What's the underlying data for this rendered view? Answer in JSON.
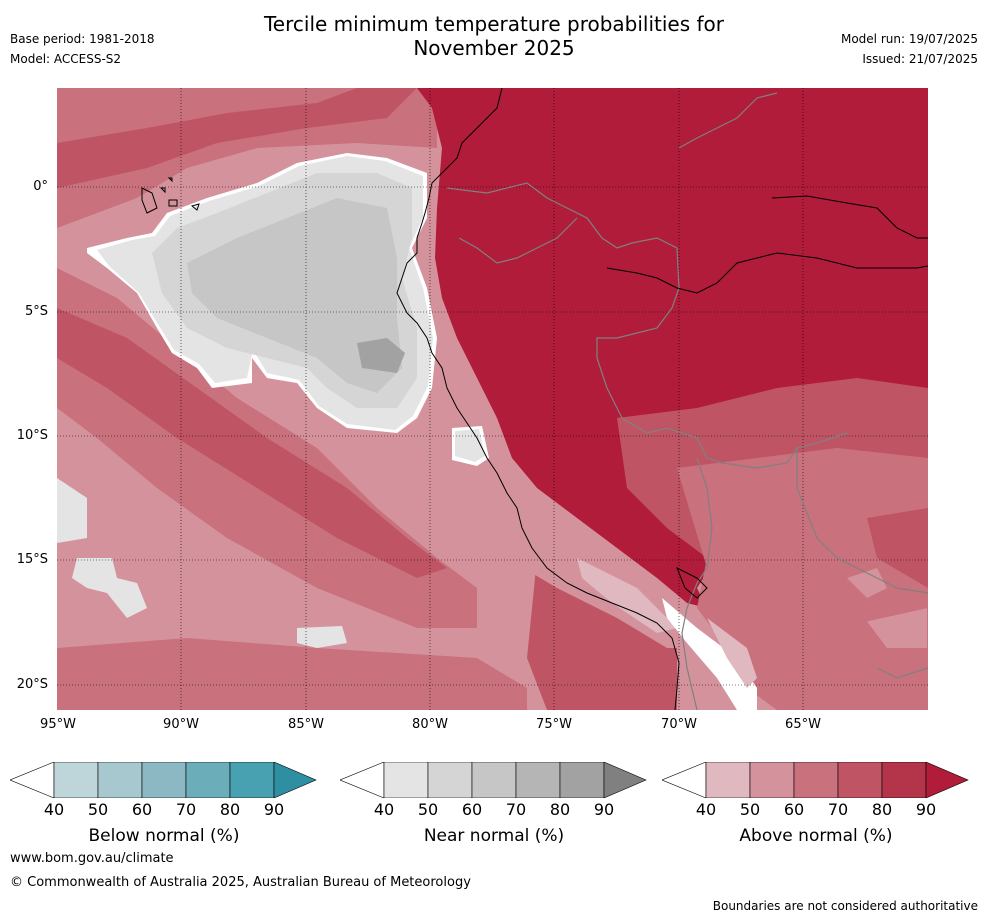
{
  "title": {
    "line1": "Tercile minimum temperature probabilities for",
    "line2": "November 2025"
  },
  "meta": {
    "base_period": "Base period: 1981-2018",
    "model": "Model: ACCESS-S2",
    "model_run": "Model run: 19/07/2025",
    "issued": "Issued: 21/07/2025"
  },
  "map": {
    "lat_labels": [
      "0°",
      "5°S",
      "10°S",
      "15°S",
      "20°S"
    ],
    "lon_labels": [
      "95°W",
      "90°W",
      "85°W",
      "80°W",
      "75°W",
      "70°W",
      "65°W"
    ],
    "colors": {
      "above_40": "#e0b8bf",
      "above_50": "#d4939c",
      "above_60": "#c9717d",
      "above_70": "#bf5564",
      "above_80": "#b4344a",
      "above_90": "#b01c3a",
      "near_40": "#e4e4e4",
      "near_50": "#d5d5d5",
      "near_60": "#c6c6c6",
      "near_70": "#b4b4b4",
      "near_80": "#a2a2a2",
      "coast": "#000000",
      "border": "#808080"
    }
  },
  "colorbars": [
    {
      "label": "Below normal (%)",
      "ticks": [
        "40",
        "50",
        "60",
        "70",
        "80",
        "90"
      ],
      "colors": [
        "#ffffff",
        "#bed5da",
        "#a7c8cf",
        "#8bb8c3",
        "#6badb9",
        "#48a1b0",
        "#2e8fa2"
      ]
    },
    {
      "label": "Near normal (%)",
      "ticks": [
        "40",
        "50",
        "60",
        "70",
        "80",
        "90"
      ],
      "colors": [
        "#ffffff",
        "#e4e4e4",
        "#d5d5d5",
        "#c6c6c6",
        "#b5b5b5",
        "#a2a2a2",
        "#808080"
      ]
    },
    {
      "label": "Above normal (%)",
      "ticks": [
        "40",
        "50",
        "60",
        "70",
        "80",
        "90"
      ],
      "colors": [
        "#ffffff",
        "#e0b8bf",
        "#d4939c",
        "#c9717d",
        "#bf5564",
        "#b4344a",
        "#b01c3a"
      ]
    }
  ],
  "footer": {
    "url": "www.bom.gov.au/climate",
    "copyright": "© Commonwealth of Australia 2025, Australian Bureau of Meteorology",
    "note": "Boundaries are not considered authoritative"
  }
}
